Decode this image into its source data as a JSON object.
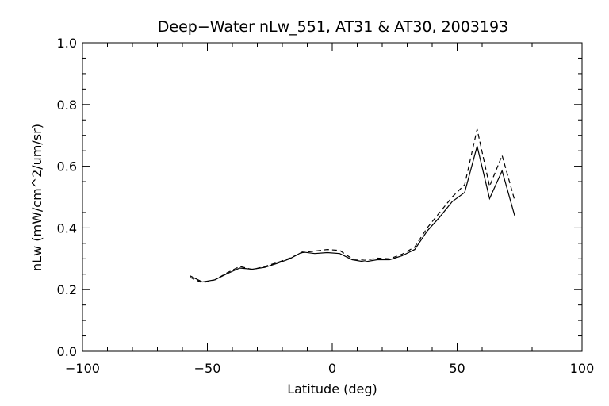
{
  "chart_data": {
    "type": "line",
    "title": "Deep−Water nLw_551, AT31 & AT30, 2003193",
    "xlabel": "Latitude (deg)",
    "ylabel": "nLw (mW/cm^2/um/sr)",
    "xlim": [
      -100,
      100
    ],
    "ylim": [
      0.0,
      1.0
    ],
    "xticks": [
      -100,
      -50,
      0,
      50,
      100
    ],
    "xtick_labels": [
      "−100",
      "−50",
      "0",
      "50",
      "100"
    ],
    "yticks": [
      0.0,
      0.2,
      0.4,
      0.6,
      0.8,
      1.0
    ],
    "ytick_labels": [
      "0.0",
      "0.2",
      "0.4",
      "0.6",
      "0.8",
      "1.0"
    ],
    "grid": false,
    "series": [
      {
        "style": "solid",
        "color": "#000000",
        "x": [
          -57,
          -52,
          -47,
          -42,
          -37,
          -32,
          -27,
          -22,
          -17,
          -12,
          -7,
          -2,
          3,
          8,
          13,
          18,
          23,
          28,
          33,
          38,
          43,
          48,
          53,
          58,
          63,
          68,
          73
        ],
        "y": [
          0.245,
          0.225,
          0.232,
          0.252,
          0.27,
          0.266,
          0.272,
          0.285,
          0.3,
          0.322,
          0.317,
          0.32,
          0.317,
          0.297,
          0.29,
          0.297,
          0.297,
          0.31,
          0.33,
          0.39,
          0.435,
          0.485,
          0.515,
          0.665,
          0.495,
          0.585,
          0.44
        ]
      },
      {
        "style": "dashed",
        "color": "#000000",
        "x": [
          -57,
          -52,
          -47,
          -42,
          -37,
          -32,
          -27,
          -22,
          -17,
          -12,
          -7,
          -2,
          3,
          8,
          13,
          18,
          23,
          28,
          33,
          38,
          43,
          48,
          53,
          58,
          63,
          68,
          73
        ],
        "y": [
          0.24,
          0.222,
          0.232,
          0.255,
          0.275,
          0.265,
          0.275,
          0.288,
          0.302,
          0.32,
          0.325,
          0.33,
          0.327,
          0.3,
          0.295,
          0.302,
          0.3,
          0.315,
          0.338,
          0.4,
          0.45,
          0.5,
          0.54,
          0.72,
          0.535,
          0.635,
          0.49
        ]
      }
    ]
  }
}
